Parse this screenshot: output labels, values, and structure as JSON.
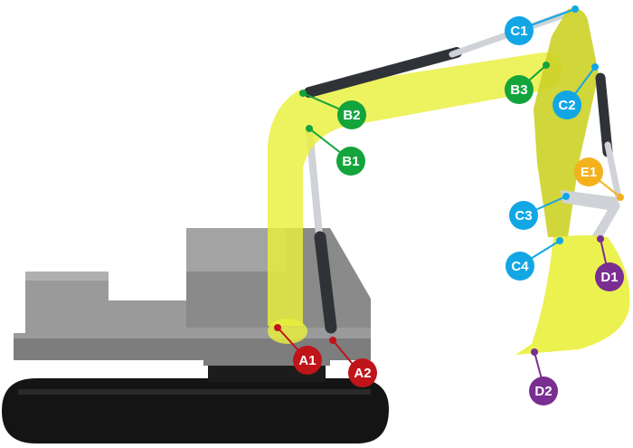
{
  "colors": {
    "arm": "#e9ef3c",
    "arm_dark": "#cdd22a",
    "body": "#9a9a9a",
    "body_dark": "#7d7d7d",
    "track": "#141414",
    "cylinder": "#2f3338",
    "rod": "#cfd2d6",
    "group_a": "#c0141b",
    "group_b": "#14a43c",
    "group_c": "#12a7e4",
    "group_d": "#7a2e91",
    "group_e": "#f3b11b"
  },
  "labels": {
    "a1": "A1",
    "a2": "A2",
    "b1": "B1",
    "b2": "B2",
    "b3": "B3",
    "c1": "C1",
    "c2": "C2",
    "c3": "C3",
    "c4": "C4",
    "d1": "D1",
    "d2": "D2",
    "e1": "E1"
  }
}
